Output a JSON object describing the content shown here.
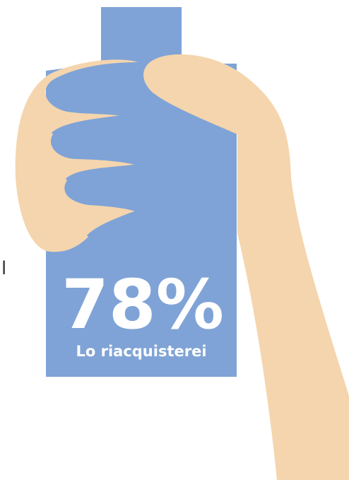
{
  "fragment": "l",
  "stat": {
    "value_label": "78%",
    "caption": "Lo riacquisterei"
  }
}
